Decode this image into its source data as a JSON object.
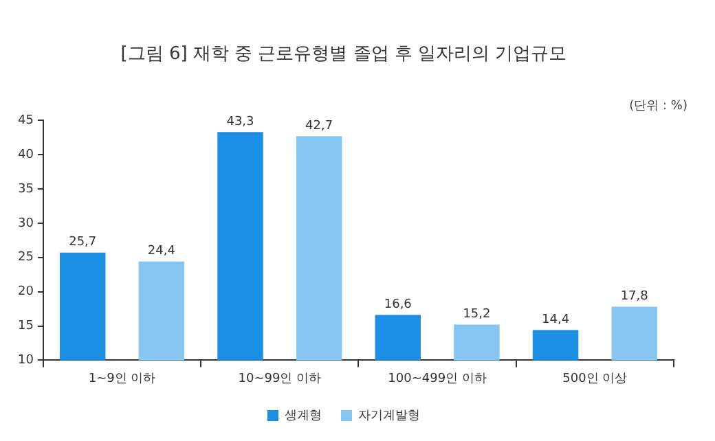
{
  "chart_data": {
    "type": "bar",
    "title": "[그림 6] 재학 중 근로유형별 졸업 후 일자리의 기업규모",
    "annotations": [
      "(단위 : %)"
    ],
    "categories": [
      "1~9인 이하",
      "10~99인 이하",
      "100~499인 이하",
      "500인 이상"
    ],
    "series": [
      {
        "name": "생계형",
        "color": "#1a8fe3",
        "values": [
          25.7,
          43.3,
          16.6,
          14.4
        ],
        "value_labels": [
          "25,7",
          "43,3",
          "16,6",
          "14,4"
        ]
      },
      {
        "name": "자기계발형",
        "color": "#85c6f2",
        "values": [
          24.4,
          42.7,
          15.2,
          17.8
        ],
        "value_labels": [
          "24,4",
          "42,7",
          "15,2",
          "17,8"
        ]
      }
    ],
    "ylim": [
      10,
      45
    ],
    "yticks": [
      10,
      15,
      20,
      25,
      30,
      35,
      40,
      45
    ],
    "grid": false,
    "legend": "bottom"
  }
}
